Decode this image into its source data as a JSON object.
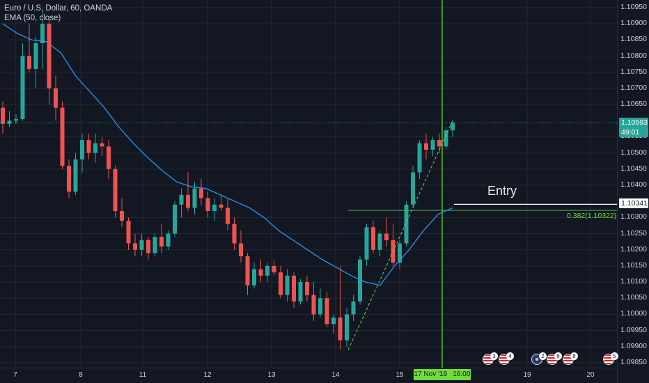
{
  "legend": {
    "symbol_line": "Euro / U.S. Dollar, 60, OANDA",
    "ema_line": "EMA (50, close)"
  },
  "price_scale": {
    "ticks": [
      "1.10950",
      "1.10900",
      "1.10850",
      "1.10800",
      "1.10750",
      "1.10700",
      "1.10650",
      "1.10550",
      "1.10500",
      "1.10450",
      "1.10400",
      "1.10300",
      "1.10250",
      "1.10200",
      "1.10150",
      "1.10100",
      "1.10050",
      "1.10000",
      "1.09950",
      "1.09900",
      "1.09850"
    ],
    "last_price": "1.10593",
    "countdown": "49:01",
    "entry_price": "1.10341"
  },
  "time_scale": {
    "labels": [
      "7",
      "8",
      "11",
      "12",
      "13",
      "14",
      "15",
      "19",
      "20"
    ],
    "cursor_label": "17 Nov '19   16:00"
  },
  "annotations": {
    "entry_text": "Entry",
    "fib_label": "0.382(1.10322)"
  },
  "events": [
    {
      "icon": "us-flag-icon",
      "count": "3"
    },
    {
      "icon": "us-flag-icon",
      "count": "4"
    },
    {
      "icon": "eu-flag-icon",
      "count": "2"
    },
    {
      "icon": "us-flag-icon",
      "count": "6"
    },
    {
      "icon": "us-flag-icon",
      "count": "8"
    },
    {
      "icon": "us-flag-icon",
      "count": "5"
    }
  ],
  "colors": {
    "background": "#131722",
    "grid": "#242838",
    "up": "#26a69a",
    "down": "#ef5350",
    "ema": "#2196f3",
    "cursor": "#6fdc3c",
    "fib": "#4caf50",
    "text": "#d1d4dc"
  },
  "chart_data": {
    "type": "candlestick",
    "symbol": "Euro / U.S. Dollar",
    "timeframe": "60",
    "broker": "OANDA",
    "indicator": "EMA (50, close)",
    "ylim": [
      1.09835,
      1.10985
    ],
    "last_price": 1.10593,
    "entry_level": 1.10341,
    "fib_level": {
      "ratio": 0.382,
      "price": 1.10322
    },
    "candles": [
      {
        "o": 1.1064,
        "h": 1.1066,
        "l": 1.1056,
        "c": 1.1059
      },
      {
        "o": 1.1059,
        "h": 1.1063,
        "l": 1.1058,
        "c": 1.106
      },
      {
        "o": 1.106,
        "h": 1.1062,
        "l": 1.1059,
        "c": 1.10605
      },
      {
        "o": 1.10605,
        "h": 1.1084,
        "l": 1.106,
        "c": 1.108
      },
      {
        "o": 1.108,
        "h": 1.109,
        "l": 1.1075,
        "c": 1.1076
      },
      {
        "o": 1.1076,
        "h": 1.1086,
        "l": 1.107,
        "c": 1.1084
      },
      {
        "o": 1.1084,
        "h": 1.10945,
        "l": 1.1076,
        "c": 1.109
      },
      {
        "o": 1.109,
        "h": 1.1092,
        "l": 1.1065,
        "c": 1.107
      },
      {
        "o": 1.107,
        "h": 1.1074,
        "l": 1.106,
        "c": 1.1064
      },
      {
        "o": 1.1064,
        "h": 1.1066,
        "l": 1.1045,
        "c": 1.1046
      },
      {
        "o": 1.1046,
        "h": 1.1048,
        "l": 1.1036,
        "c": 1.1038
      },
      {
        "o": 1.1038,
        "h": 1.105,
        "l": 1.1037,
        "c": 1.1048
      },
      {
        "o": 1.1048,
        "h": 1.1056,
        "l": 1.1044,
        "c": 1.1054
      },
      {
        "o": 1.1054,
        "h": 1.1056,
        "l": 1.1048,
        "c": 1.105
      },
      {
        "o": 1.105,
        "h": 1.1056,
        "l": 1.1047,
        "c": 1.1053
      },
      {
        "o": 1.1053,
        "h": 1.1055,
        "l": 1.1049,
        "c": 1.1052
      },
      {
        "o": 1.1052,
        "h": 1.1054,
        "l": 1.1042,
        "c": 1.1045
      },
      {
        "o": 1.1045,
        "h": 1.1046,
        "l": 1.103,
        "c": 1.1032
      },
      {
        "o": 1.1032,
        "h": 1.1036,
        "l": 1.1027,
        "c": 1.1029
      },
      {
        "o": 1.1029,
        "h": 1.103,
        "l": 1.102,
        "c": 1.1022
      },
      {
        "o": 1.1022,
        "h": 1.1025,
        "l": 1.1018,
        "c": 1.102
      },
      {
        "o": 1.102,
        "h": 1.1025,
        "l": 1.1018,
        "c": 1.1023
      },
      {
        "o": 1.1023,
        "h": 1.1024,
        "l": 1.1017,
        "c": 1.1019
      },
      {
        "o": 1.1019,
        "h": 1.1025,
        "l": 1.1018,
        "c": 1.1024
      },
      {
        "o": 1.1024,
        "h": 1.1028,
        "l": 1.1019,
        "c": 1.1021
      },
      {
        "o": 1.1021,
        "h": 1.1026,
        "l": 1.102,
        "c": 1.1025
      },
      {
        "o": 1.1025,
        "h": 1.1035,
        "l": 1.1024,
        "c": 1.1034
      },
      {
        "o": 1.1034,
        "h": 1.1039,
        "l": 1.103,
        "c": 1.1037
      },
      {
        "o": 1.1037,
        "h": 1.1044,
        "l": 1.1032,
        "c": 1.1033
      },
      {
        "o": 1.1033,
        "h": 1.1041,
        "l": 1.1031,
        "c": 1.1039
      },
      {
        "o": 1.1039,
        "h": 1.1042,
        "l": 1.1034,
        "c": 1.1036
      },
      {
        "o": 1.1036,
        "h": 1.1038,
        "l": 1.103,
        "c": 1.1032
      },
      {
        "o": 1.1032,
        "h": 1.1036,
        "l": 1.1029,
        "c": 1.1034
      },
      {
        "o": 1.1034,
        "h": 1.1037,
        "l": 1.1032,
        "c": 1.1033
      },
      {
        "o": 1.1033,
        "h": 1.1036,
        "l": 1.1026,
        "c": 1.1028
      },
      {
        "o": 1.1028,
        "h": 1.103,
        "l": 1.102,
        "c": 1.1022
      },
      {
        "o": 1.1022,
        "h": 1.1026,
        "l": 1.1016,
        "c": 1.1018
      },
      {
        "o": 1.1018,
        "h": 1.1019,
        "l": 1.1006,
        "c": 1.1009
      },
      {
        "o": 1.1009,
        "h": 1.1016,
        "l": 1.1008,
        "c": 1.1014
      },
      {
        "o": 1.1014,
        "h": 1.1017,
        "l": 1.101,
        "c": 1.1012
      },
      {
        "o": 1.1012,
        "h": 1.1016,
        "l": 1.101,
        "c": 1.1015
      },
      {
        "o": 1.1015,
        "h": 1.1017,
        "l": 1.1012,
        "c": 1.1013
      },
      {
        "o": 1.1013,
        "h": 1.1015,
        "l": 1.1005,
        "c": 1.1006
      },
      {
        "o": 1.1006,
        "h": 1.1014,
        "l": 1.1004,
        "c": 1.1012
      },
      {
        "o": 1.1012,
        "h": 1.1013,
        "l": 1.1002,
        "c": 1.1004
      },
      {
        "o": 1.1004,
        "h": 1.1011,
        "l": 1.1003,
        "c": 1.101
      },
      {
        "o": 1.101,
        "h": 1.1012,
        "l": 1.1004,
        "c": 1.1006
      },
      {
        "o": 1.1006,
        "h": 1.101,
        "l": 1.0998,
        "c": 1.1
      },
      {
        "o": 1.1,
        "h": 1.1008,
        "l": 1.0999,
        "c": 1.1005
      },
      {
        "o": 1.1005,
        "h": 1.1007,
        "l": 1.0996,
        "c": 1.0997
      },
      {
        "o": 1.0997,
        "h": 1.1,
        "l": 1.0994,
        "c": 1.0999
      },
      {
        "o": 1.0999,
        "h": 1.1015,
        "l": 1.0989,
        "c": 1.0992
      },
      {
        "o": 1.0992,
        "h": 1.1002,
        "l": 1.099,
        "c": 1.1
      },
      {
        "o": 1.1,
        "h": 1.1006,
        "l": 1.0998,
        "c": 1.1004
      },
      {
        "o": 1.1004,
        "h": 1.1018,
        "l": 1.1003,
        "c": 1.1017
      },
      {
        "o": 1.1017,
        "h": 1.1028,
        "l": 1.1015,
        "c": 1.1027
      },
      {
        "o": 1.1027,
        "h": 1.1029,
        "l": 1.1019,
        "c": 1.102
      },
      {
        "o": 1.102,
        "h": 1.1026,
        "l": 1.1018,
        "c": 1.1025
      },
      {
        "o": 1.1025,
        "h": 1.103,
        "l": 1.1021,
        "c": 1.1023
      },
      {
        "o": 1.1023,
        "h": 1.1028,
        "l": 1.1015,
        "c": 1.1016
      },
      {
        "o": 1.1016,
        "h": 1.1023,
        "l": 1.1014,
        "c": 1.1022
      },
      {
        "o": 1.1022,
        "h": 1.1035,
        "l": 1.1021,
        "c": 1.1034
      },
      {
        "o": 1.1034,
        "h": 1.1046,
        "l": 1.1033,
        "c": 1.1044
      },
      {
        "o": 1.1044,
        "h": 1.1054,
        "l": 1.1042,
        "c": 1.1053
      },
      {
        "o": 1.1053,
        "h": 1.1056,
        "l": 1.1048,
        "c": 1.1051
      },
      {
        "o": 1.1051,
        "h": 1.1055,
        "l": 1.1049,
        "c": 1.1054
      },
      {
        "o": 1.1054,
        "h": 1.1056,
        "l": 1.105,
        "c": 1.1052
      },
      {
        "o": 1.1052,
        "h": 1.1058,
        "l": 1.1051,
        "c": 1.1057
      },
      {
        "o": 1.1057,
        "h": 1.106,
        "l": 1.1055,
        "c": 1.10593
      }
    ],
    "ema": [
      1.109,
      1.1087,
      1.1085,
      1.10845,
      1.1081,
      1.1074,
      1.1069,
      1.1064,
      1.1058,
      1.1053,
      1.10485,
      1.10445,
      1.1041,
      1.10395,
      1.1039,
      1.1037,
      1.1035,
      1.1033,
      1.103,
      1.1026,
      1.1023,
      1.102,
      1.1017,
      1.10145,
      1.1012,
      1.101,
      1.1009,
      1.1015,
      1.102,
      1.1026,
      1.1031,
      1.1033
    ]
  }
}
